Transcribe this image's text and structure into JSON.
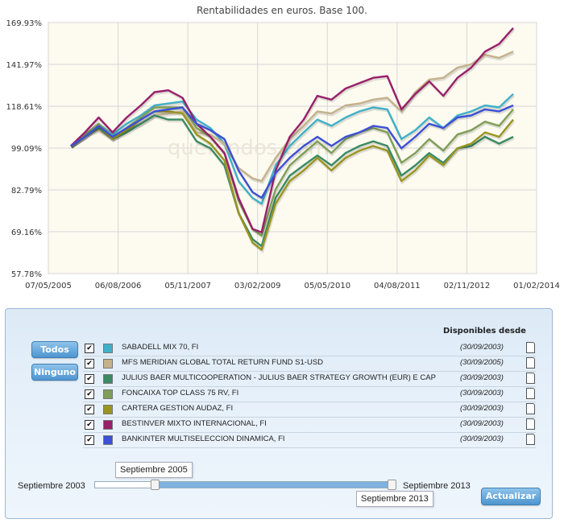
{
  "chart_data": {
    "type": "line",
    "title": "Rentabilidades en euros. Base 100.",
    "xlabel": "",
    "ylabel": "",
    "ylim": [
      57.78,
      169.93
    ],
    "yticks": [
      "57.78%",
      "69.16%",
      "82.79%",
      "99.09%",
      "118.61%",
      "141.97%",
      "169.93%"
    ],
    "xticks": [
      "07/05/2005",
      "06/08/2006",
      "05/11/2007",
      "03/02/2009",
      "05/05/2010",
      "04/08/2011",
      "02/11/2012",
      "01/02/2014"
    ],
    "xlim": [
      "2005-05-07",
      "2014-02-01"
    ],
    "grid": true,
    "watermark": "quefondos.com",
    "series": [
      {
        "name": "SABADELL MIX 70, FI",
        "color": "#40b0c8",
        "points": [
          [
            "2005-10-01",
            100
          ],
          [
            "2006-01-01",
            104
          ],
          [
            "2006-04-01",
            110
          ],
          [
            "2006-07-01",
            105
          ],
          [
            "2006-10-01",
            110
          ],
          [
            "2007-01-01",
            114
          ],
          [
            "2007-04-01",
            119
          ],
          [
            "2007-07-01",
            120
          ],
          [
            "2007-10-01",
            121
          ],
          [
            "2008-01-01",
            112
          ],
          [
            "2008-04-01",
            108
          ],
          [
            "2008-07-01",
            101
          ],
          [
            "2008-10-01",
            86
          ],
          [
            "2009-01-01",
            80
          ],
          [
            "2009-03-01",
            78
          ],
          [
            "2009-06-01",
            92
          ],
          [
            "2009-09-01",
            100
          ],
          [
            "2009-12-01",
            106
          ],
          [
            "2010-03-01",
            112
          ],
          [
            "2010-06-01",
            109
          ],
          [
            "2010-09-01",
            113
          ],
          [
            "2010-12-01",
            116
          ],
          [
            "2011-03-01",
            118
          ],
          [
            "2011-06-01",
            117
          ],
          [
            "2011-09-01",
            103
          ],
          [
            "2011-12-01",
            107
          ],
          [
            "2012-03-01",
            113
          ],
          [
            "2012-06-01",
            108
          ],
          [
            "2012-09-01",
            114
          ],
          [
            "2012-12-01",
            116
          ],
          [
            "2013-03-01",
            119
          ],
          [
            "2013-06-01",
            118
          ],
          [
            "2013-09-01",
            125
          ]
        ]
      },
      {
        "name": "MFS MERIDIAN GLOBAL TOTAL RETURN FUND S1-USD",
        "color": "#c4b28c",
        "points": [
          [
            "2005-10-01",
            100
          ],
          [
            "2006-01-01",
            105
          ],
          [
            "2006-04-01",
            107
          ],
          [
            "2006-07-01",
            103
          ],
          [
            "2006-10-01",
            107
          ],
          [
            "2007-01-01",
            110
          ],
          [
            "2007-04-01",
            114
          ],
          [
            "2007-07-01",
            115
          ],
          [
            "2007-10-01",
            116
          ],
          [
            "2008-01-01",
            106
          ],
          [
            "2008-04-01",
            105
          ],
          [
            "2008-07-01",
            101
          ],
          [
            "2008-10-01",
            91
          ],
          [
            "2009-01-01",
            87
          ],
          [
            "2009-03-01",
            86
          ],
          [
            "2009-06-01",
            95
          ],
          [
            "2009-09-01",
            103
          ],
          [
            "2009-12-01",
            109
          ],
          [
            "2010-03-01",
            116
          ],
          [
            "2010-06-01",
            115
          ],
          [
            "2010-09-01",
            119
          ],
          [
            "2010-12-01",
            120
          ],
          [
            "2011-03-01",
            122
          ],
          [
            "2011-06-01",
            123
          ],
          [
            "2011-09-01",
            116
          ],
          [
            "2011-12-01",
            126
          ],
          [
            "2012-03-01",
            133
          ],
          [
            "2012-06-01",
            134
          ],
          [
            "2012-09-01",
            140
          ],
          [
            "2012-12-01",
            142
          ],
          [
            "2013-03-01",
            148
          ],
          [
            "2013-06-01",
            146
          ],
          [
            "2013-09-01",
            150
          ]
        ]
      },
      {
        "name": "JULIUS BAER MULTICOOPERATION - JULIUS BAER STRATEGY GROWTH (EUR) E CAP",
        "color": "#3a8a64",
        "points": [
          [
            "2005-10-01",
            100
          ],
          [
            "2006-01-01",
            104
          ],
          [
            "2006-04-01",
            108
          ],
          [
            "2006-07-01",
            103
          ],
          [
            "2006-10-01",
            106
          ],
          [
            "2007-01-01",
            110
          ],
          [
            "2007-04-01",
            114
          ],
          [
            "2007-07-01",
            112
          ],
          [
            "2007-10-01",
            112
          ],
          [
            "2008-01-01",
            102
          ],
          [
            "2008-04-01",
            99
          ],
          [
            "2008-07-01",
            92
          ],
          [
            "2008-10-01",
            75
          ],
          [
            "2009-01-01",
            67
          ],
          [
            "2009-03-01",
            65
          ],
          [
            "2009-06-01",
            80
          ],
          [
            "2009-09-01",
            88
          ],
          [
            "2009-12-01",
            92
          ],
          [
            "2010-03-01",
            96
          ],
          [
            "2010-06-01",
            92
          ],
          [
            "2010-09-01",
            97
          ],
          [
            "2010-12-01",
            100
          ],
          [
            "2011-03-01",
            102
          ],
          [
            "2011-06-01",
            100
          ],
          [
            "2011-09-01",
            88
          ],
          [
            "2011-12-01",
            92
          ],
          [
            "2012-03-01",
            97
          ],
          [
            "2012-06-01",
            93
          ],
          [
            "2012-09-01",
            99
          ],
          [
            "2012-12-01",
            100
          ],
          [
            "2013-03-01",
            104
          ],
          [
            "2013-06-01",
            101
          ],
          [
            "2013-09-01",
            104
          ]
        ]
      },
      {
        "name": "FONCAIXA TOP CLASS 75 RV, FI",
        "color": "#7f9e58",
        "points": [
          [
            "2005-10-01",
            100
          ],
          [
            "2006-01-01",
            105
          ],
          [
            "2006-04-01",
            110
          ],
          [
            "2006-07-01",
            104
          ],
          [
            "2006-10-01",
            108
          ],
          [
            "2007-01-01",
            113
          ],
          [
            "2007-04-01",
            118
          ],
          [
            "2007-07-01",
            118
          ],
          [
            "2007-10-01",
            118
          ],
          [
            "2008-01-01",
            108
          ],
          [
            "2008-04-01",
            104
          ],
          [
            "2008-07-01",
            97
          ],
          [
            "2008-10-01",
            79
          ],
          [
            "2009-01-01",
            70
          ],
          [
            "2009-03-01",
            68
          ],
          [
            "2009-06-01",
            83
          ],
          [
            "2009-09-01",
            92
          ],
          [
            "2009-12-01",
            97
          ],
          [
            "2010-03-01",
            102
          ],
          [
            "2010-06-01",
            97
          ],
          [
            "2010-09-01",
            103
          ],
          [
            "2010-12-01",
            106
          ],
          [
            "2011-03-01",
            108
          ],
          [
            "2011-06-01",
            106
          ],
          [
            "2011-09-01",
            93
          ],
          [
            "2011-12-01",
            97
          ],
          [
            "2012-03-01",
            103
          ],
          [
            "2012-06-01",
            98
          ],
          [
            "2012-09-01",
            105
          ],
          [
            "2012-12-01",
            107
          ],
          [
            "2013-03-01",
            111
          ],
          [
            "2013-06-01",
            109
          ],
          [
            "2013-09-01",
            117
          ]
        ]
      },
      {
        "name": "CARTERA GESTION AUDAZ, FI",
        "color": "#9a9520",
        "points": [
          [
            "2005-10-01",
            100
          ],
          [
            "2006-01-01",
            104
          ],
          [
            "2006-04-01",
            109
          ],
          [
            "2006-07-01",
            103
          ],
          [
            "2006-10-01",
            107
          ],
          [
            "2007-01-01",
            112
          ],
          [
            "2007-04-01",
            116
          ],
          [
            "2007-07-01",
            116
          ],
          [
            "2007-10-01",
            115
          ],
          [
            "2008-01-01",
            105
          ],
          [
            "2008-04-01",
            101
          ],
          [
            "2008-07-01",
            94
          ],
          [
            "2008-10-01",
            75
          ],
          [
            "2009-01-01",
            66
          ],
          [
            "2009-03-01",
            64
          ],
          [
            "2009-06-01",
            78
          ],
          [
            "2009-09-01",
            86
          ],
          [
            "2009-12-01",
            90
          ],
          [
            "2010-03-01",
            95
          ],
          [
            "2010-06-01",
            90
          ],
          [
            "2010-09-01",
            95
          ],
          [
            "2010-12-01",
            98
          ],
          [
            "2011-03-01",
            100
          ],
          [
            "2011-06-01",
            98
          ],
          [
            "2011-09-01",
            86
          ],
          [
            "2011-12-01",
            90
          ],
          [
            "2012-03-01",
            96
          ],
          [
            "2012-06-01",
            92
          ],
          [
            "2012-09-01",
            99
          ],
          [
            "2012-12-01",
            101
          ],
          [
            "2013-03-01",
            106
          ],
          [
            "2013-06-01",
            104
          ],
          [
            "2013-09-01",
            112
          ]
        ]
      },
      {
        "name": "BESTINVER MIXTO INTERNACIONAL, FI",
        "color": "#98206a",
        "points": [
          [
            "2005-10-01",
            100
          ],
          [
            "2006-01-01",
            106
          ],
          [
            "2006-04-01",
            113
          ],
          [
            "2006-07-01",
            106
          ],
          [
            "2006-10-01",
            113
          ],
          [
            "2007-01-01",
            119
          ],
          [
            "2007-04-01",
            126
          ],
          [
            "2007-07-01",
            127
          ],
          [
            "2007-10-01",
            123
          ],
          [
            "2008-01-01",
            110
          ],
          [
            "2008-04-01",
            104
          ],
          [
            "2008-07-01",
            97
          ],
          [
            "2008-10-01",
            80
          ],
          [
            "2009-01-01",
            70
          ],
          [
            "2009-03-01",
            69
          ],
          [
            "2009-06-01",
            90
          ],
          [
            "2009-09-01",
            104
          ],
          [
            "2009-12-01",
            112
          ],
          [
            "2010-03-01",
            124
          ],
          [
            "2010-06-01",
            122
          ],
          [
            "2010-09-01",
            128
          ],
          [
            "2010-12-01",
            131
          ],
          [
            "2011-03-01",
            134
          ],
          [
            "2011-06-01",
            135
          ],
          [
            "2011-09-01",
            117
          ],
          [
            "2011-12-01",
            125
          ],
          [
            "2012-03-01",
            132
          ],
          [
            "2012-06-01",
            124
          ],
          [
            "2012-09-01",
            134
          ],
          [
            "2012-12-01",
            140
          ],
          [
            "2013-03-01",
            150
          ],
          [
            "2013-06-01",
            155
          ],
          [
            "2013-09-01",
            166
          ]
        ]
      },
      {
        "name": "BANKINTER MULTISELECCION DINAMICA, FI",
        "color": "#3c50d6",
        "points": [
          [
            "2005-10-01",
            100
          ],
          [
            "2006-01-01",
            104
          ],
          [
            "2006-04-01",
            109
          ],
          [
            "2006-07-01",
            104
          ],
          [
            "2006-10-01",
            108
          ],
          [
            "2007-01-01",
            112
          ],
          [
            "2007-04-01",
            116
          ],
          [
            "2007-07-01",
            117
          ],
          [
            "2007-10-01",
            118
          ],
          [
            "2008-01-01",
            110
          ],
          [
            "2008-04-01",
            107
          ],
          [
            "2008-07-01",
            103
          ],
          [
            "2008-10-01",
            90
          ],
          [
            "2009-01-01",
            82
          ],
          [
            "2009-03-01",
            80
          ],
          [
            "2009-06-01",
            89
          ],
          [
            "2009-09-01",
            95
          ],
          [
            "2009-12-01",
            100
          ],
          [
            "2010-03-01",
            104
          ],
          [
            "2010-06-01",
            100
          ],
          [
            "2010-09-01",
            104
          ],
          [
            "2010-12-01",
            106
          ],
          [
            "2011-03-01",
            109
          ],
          [
            "2011-06-01",
            108
          ],
          [
            "2011-09-01",
            99
          ],
          [
            "2011-12-01",
            104
          ],
          [
            "2012-03-01",
            110
          ],
          [
            "2012-06-01",
            108
          ],
          [
            "2012-09-01",
            113
          ],
          [
            "2012-12-01",
            114
          ],
          [
            "2013-03-01",
            117
          ],
          [
            "2013-06-01",
            116
          ],
          [
            "2013-09-01",
            119
          ]
        ]
      }
    ]
  },
  "controls": {
    "todos_label": "Todos",
    "ninguno_label": "Ninguno",
    "header_disponibles": "Disponibles desde",
    "update_label": "Actualizar",
    "funds": [
      {
        "name": "SABADELL MIX 70, FI",
        "date": "(30/09/2003)",
        "checked": true,
        "color": "#40b0c8"
      },
      {
        "name": "MFS MERIDIAN GLOBAL TOTAL RETURN FUND S1-USD",
        "date": "(30/09/2005)",
        "checked": true,
        "color": "#c4b28c"
      },
      {
        "name": "JULIUS BAER MULTICOOPERATION - JULIUS BAER STRATEGY GROWTH (EUR) E CAP",
        "date": "(30/09/2003)",
        "checked": true,
        "color": "#3a8a64"
      },
      {
        "name": "FONCAIXA TOP CLASS 75 RV, FI",
        "date": "(30/09/2003)",
        "checked": true,
        "color": "#7f9e58"
      },
      {
        "name": "CARTERA GESTION AUDAZ, FI",
        "date": "(30/09/2003)",
        "checked": true,
        "color": "#9a9520"
      },
      {
        "name": "BESTINVER MIXTO INTERNACIONAL, FI",
        "date": "(30/09/2003)",
        "checked": true,
        "color": "#98206a"
      },
      {
        "name": "BANKINTER MULTISELECCION DINAMICA, FI",
        "date": "(30/09/2003)",
        "checked": true,
        "color": "#3c50d6"
      }
    ],
    "slider": {
      "min_label": "Septiembre 2003",
      "max_label": "Septiembre 2013",
      "start_tooltip": "Septiembre 2005",
      "end_tooltip": "Septiembre 2013",
      "start_fraction": 0.2,
      "end_fraction": 1.0
    }
  }
}
